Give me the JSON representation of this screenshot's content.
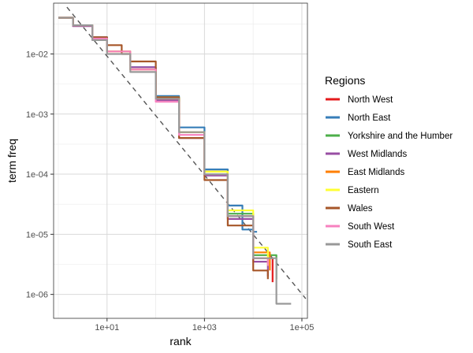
{
  "chart_data": {
    "type": "line",
    "title": "",
    "xlabel": "rank",
    "ylabel": "term freq",
    "x_scale": "log10",
    "y_scale": "log10",
    "xlim": [
      0.8,
      130000
    ],
    "ylim": [
      4e-07,
      0.07
    ],
    "grid": true,
    "x_ticks": [
      {
        "value": 10,
        "label": "1e+01"
      },
      {
        "value": 1000,
        "label": "1e+03"
      },
      {
        "value": 100000,
        "label": "1e+05"
      }
    ],
    "y_ticks": [
      {
        "value": 0.01,
        "label": "1e-02"
      },
      {
        "value": 0.001,
        "label": "1e-03"
      },
      {
        "value": 0.0001,
        "label": "1e-04"
      },
      {
        "value": 1e-05,
        "label": "1e-05"
      },
      {
        "value": 1e-06,
        "label": "1e-06"
      }
    ],
    "legend": {
      "title": "Regions",
      "position": "right"
    },
    "reference_line": {
      "style": "dashed",
      "color": "#555555",
      "x": [
        1.5,
        120000
      ],
      "y": [
        0.06,
        8.5e-07
      ]
    },
    "series": [
      {
        "name": "North West",
        "color": "#E41A1C",
        "x": [
          1,
          2,
          5,
          10,
          30,
          100,
          300,
          1000,
          3000,
          10000,
          25000
        ],
        "y": [
          0.04,
          0.03,
          0.018,
          0.011,
          0.0055,
          0.0018,
          0.0005,
          0.00011,
          2e-05,
          4e-06,
          1.6e-06
        ]
      },
      {
        "name": "North East",
        "color": "#377EB8",
        "x": [
          1,
          2,
          5,
          10,
          30,
          100,
          300,
          1000,
          3000,
          6000,
          10000,
          12000
        ],
        "y": [
          0.04,
          0.03,
          0.019,
          0.011,
          0.006,
          0.002,
          0.0006,
          0.00012,
          3e-05,
          1.2e-05,
          1.1e-05,
          1.1e-05
        ]
      },
      {
        "name": "Yorkshire and the Humber",
        "color": "#4DAF4A",
        "x": [
          1,
          2,
          5,
          10,
          30,
          100,
          300,
          1000,
          3000,
          10000,
          30000
        ],
        "y": [
          0.04,
          0.03,
          0.018,
          0.011,
          0.0055,
          0.0019,
          0.0005,
          0.00011,
          2.2e-05,
          4.5e-06,
          1.8e-06
        ]
      },
      {
        "name": "West Midlands",
        "color": "#984EA3",
        "x": [
          1,
          2,
          5,
          10,
          30,
          100,
          300,
          1000,
          3000,
          10000,
          20000
        ],
        "y": [
          0.04,
          0.029,
          0.017,
          0.011,
          0.006,
          0.0017,
          0.0004,
          9.5e-05,
          1.8e-05,
          3.5e-06,
          2e-06
        ]
      },
      {
        "name": "East Midlands",
        "color": "#FF7F00",
        "x": [
          1,
          2,
          5,
          10,
          30,
          100,
          300,
          1000,
          3000,
          10000,
          22000
        ],
        "y": [
          0.04,
          0.03,
          0.018,
          0.011,
          0.0055,
          0.0018,
          0.0005,
          0.00011,
          2e-05,
          5e-06,
          2.5e-06
        ]
      },
      {
        "name": "Eastern",
        "color": "#FFFF33",
        "x": [
          1,
          2,
          5,
          10,
          30,
          100,
          300,
          1000,
          3000,
          10000,
          20000
        ],
        "y": [
          0.04,
          0.03,
          0.018,
          0.011,
          0.0055,
          0.0019,
          0.0005,
          0.00011,
          2.5e-05,
          6e-06,
          3e-06
        ]
      },
      {
        "name": "Wales",
        "color": "#A65628",
        "x": [
          1,
          2,
          5,
          10,
          20,
          30,
          100,
          300,
          1000,
          3000,
          10000,
          20000
        ],
        "y": [
          0.04,
          0.03,
          0.019,
          0.014,
          0.01,
          0.0075,
          0.0019,
          0.0004,
          8e-05,
          1.4e-05,
          2.5e-06,
          1.8e-06
        ]
      },
      {
        "name": "South West",
        "color": "#F781BF",
        "x": [
          1,
          2,
          5,
          10,
          30,
          100,
          300,
          1000,
          3000,
          10000,
          20000
        ],
        "y": [
          0.04,
          0.03,
          0.018,
          0.011,
          0.0055,
          0.0016,
          0.00045,
          0.0001,
          2e-05,
          4e-06,
          3e-06
        ]
      },
      {
        "name": "South East",
        "color": "#999999",
        "x": [
          1,
          2,
          5,
          10,
          30,
          100,
          300,
          1000,
          3000,
          10000,
          30000,
          60000
        ],
        "y": [
          0.04,
          0.03,
          0.017,
          0.01,
          0.005,
          0.0018,
          0.0005,
          0.0001,
          2e-05,
          4e-06,
          7e-07,
          7e-07
        ]
      }
    ]
  }
}
